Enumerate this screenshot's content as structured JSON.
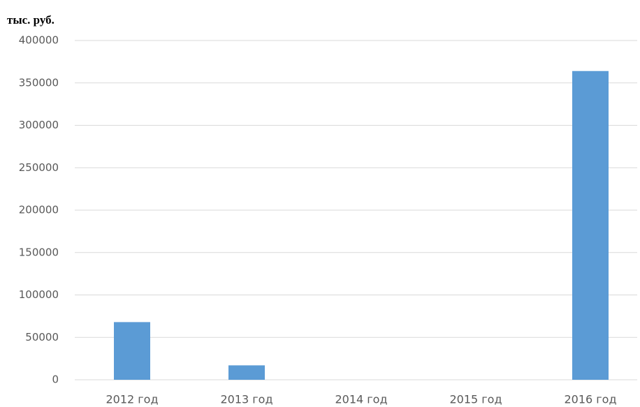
{
  "chart_data": {
    "type": "bar",
    "y_label": "тыс. руб.",
    "categories": [
      "2012 год",
      "2013 год",
      "2014 год",
      "2015 год",
      "2016 год"
    ],
    "values": [
      68000,
      17000,
      0,
      0,
      364000
    ],
    "color": "#5b9bd5",
    "ylim": [
      0,
      400000
    ],
    "yticks": [
      0,
      50000,
      100000,
      150000,
      200000,
      250000,
      300000,
      350000,
      400000
    ],
    "grid": true
  }
}
